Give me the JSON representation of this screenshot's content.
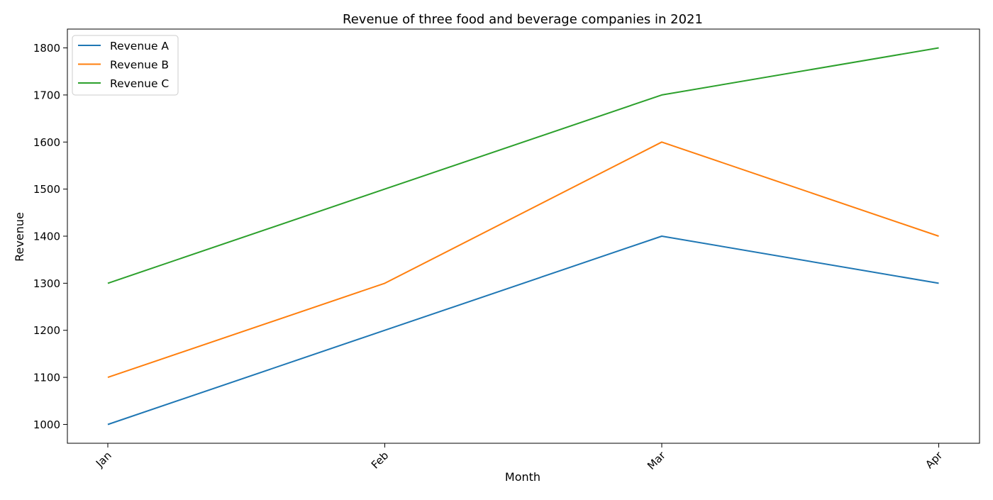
{
  "chart_data": {
    "type": "line",
    "title": "Revenue of three food and beverage companies in 2021",
    "xlabel": "Month",
    "ylabel": "Revenue",
    "categories": [
      "Jan",
      "Feb",
      "Mar",
      "Apr"
    ],
    "ylim": [
      960,
      1840
    ],
    "yticks": [
      1000,
      1100,
      1200,
      1300,
      1400,
      1500,
      1600,
      1700,
      1800
    ],
    "grid": false,
    "legend_position": "top-left",
    "series": [
      {
        "name": "Revenue A",
        "color": "#1f77b4",
        "values": [
          1000,
          1200,
          1400,
          1300
        ]
      },
      {
        "name": "Revenue B",
        "color": "#ff7f0e",
        "values": [
          1100,
          1300,
          1600,
          1400
        ]
      },
      {
        "name": "Revenue C",
        "color": "#2ca02c",
        "values": [
          1300,
          1500,
          1700,
          1800
        ]
      }
    ]
  }
}
